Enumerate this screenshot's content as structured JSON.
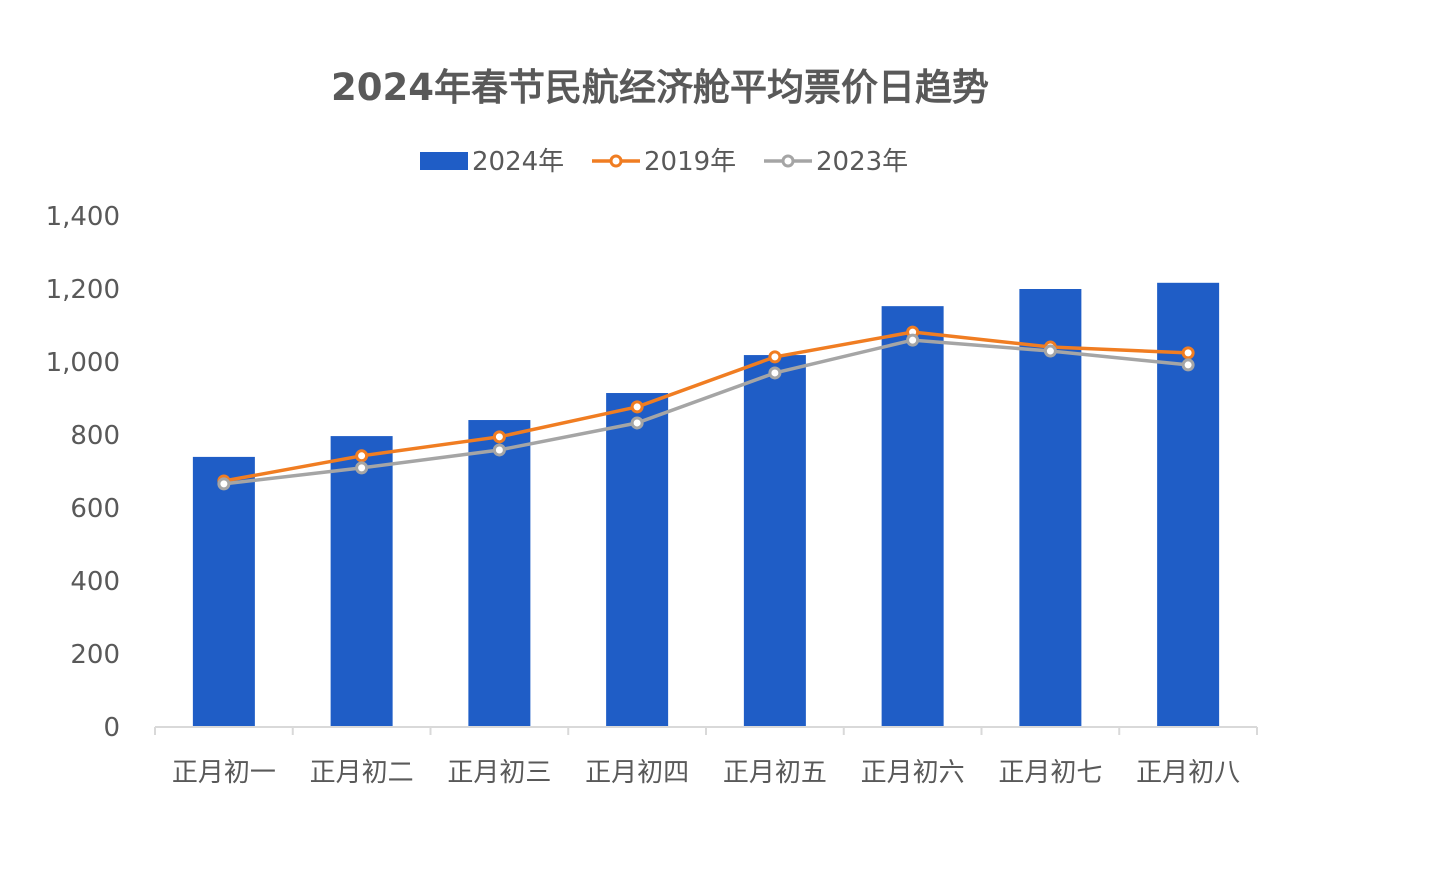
{
  "chart_data": {
    "type": "bar",
    "title": "2024年春节民航经济舱平均票价日趋势",
    "xlabel": "",
    "ylabel": "",
    "ylim": [
      0,
      1400
    ],
    "yticks": [
      0,
      200,
      400,
      600,
      800,
      1000,
      1200,
      1400
    ],
    "ytick_labels": [
      "0",
      "200",
      "400",
      "600",
      "800",
      "1,000",
      "1,200",
      "1,400"
    ],
    "grid": false,
    "legend_position": "top-center",
    "categories": [
      "正月初一",
      "正月初二",
      "正月初三",
      "正月初四",
      "正月初五",
      "正月初六",
      "正月初七",
      "正月初八"
    ],
    "series": [
      {
        "name": "2024年",
        "kind": "bar",
        "color": "#1F5DC6",
        "values": [
          740,
          797,
          841,
          915,
          1019,
          1153,
          1200,
          1217
        ]
      },
      {
        "name": "2019年",
        "kind": "line",
        "color": "#F07D22",
        "values": [
          674,
          743,
          795,
          877,
          1014,
          1082,
          1041,
          1025
        ]
      },
      {
        "name": "2023年",
        "kind": "line",
        "color": "#A5A5A5",
        "values": [
          666,
          710,
          759,
          833,
          970,
          1060,
          1030,
          992
        ]
      }
    ]
  }
}
